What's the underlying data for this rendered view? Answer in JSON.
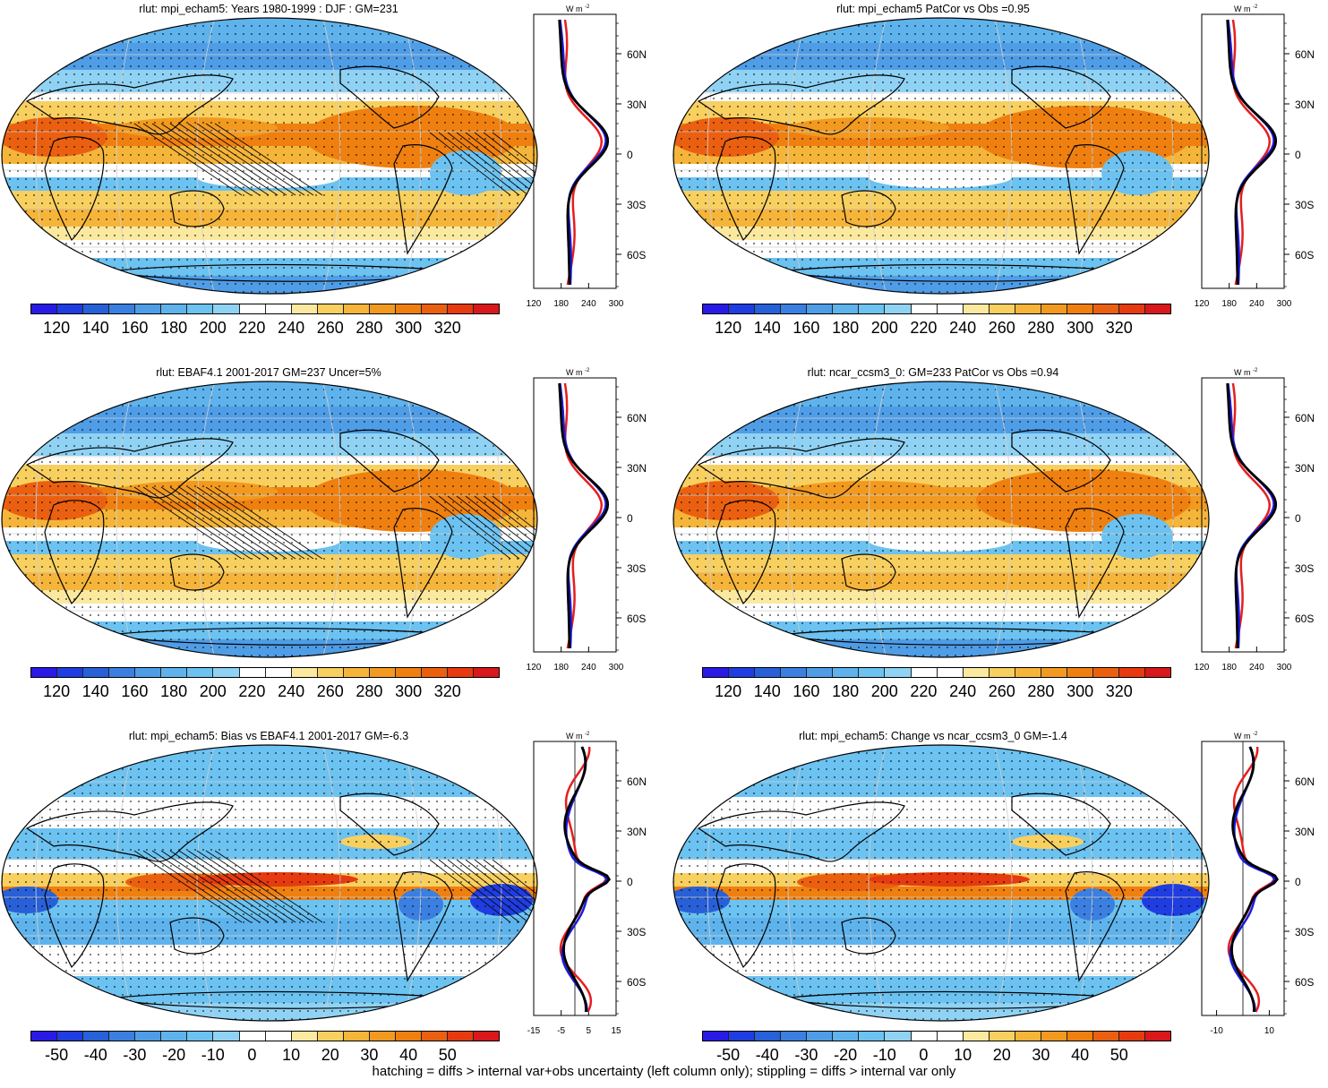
{
  "footer": "hatching = diffs > internal var+obs uncertainty (left column only); stippling = diffs > internal var only",
  "colors": {
    "scale": [
      "#2a1ae6",
      "#1f3de0",
      "#2860d8",
      "#3b7fe0",
      "#4f9de6",
      "#5fb3ec",
      "#6cc2f0",
      "#8fd2f4",
      "#ffffff",
      "#ffffff",
      "#fbe9a0",
      "#f8d060",
      "#f5b53a",
      "#f29a20",
      "#ef8010",
      "#eb6010",
      "#e63a10",
      "#d8181a"
    ],
    "obs": "#e61e1e",
    "model": "#1b1bdc",
    "other": "#000000"
  },
  "zonal_units": "W m",
  "zonal_units_sup": "-2",
  "lat_labels": [
    "60N",
    "30N",
    "0",
    "30S",
    "60S"
  ],
  "panels": [
    {
      "title": "rlut: mpi_echam5: Years 1980-1999 : DJF : GM=231",
      "cbar_labels": [
        "120",
        "140",
        "160",
        "180",
        "200",
        "220",
        "240",
        "260",
        "280",
        "300",
        "320"
      ],
      "zonal_ticks": [
        "120",
        "180",
        "240",
        "300"
      ],
      "type": "abs"
    },
    {
      "title": "rlut: mpi_echam5 PatCor vs Obs =0.95",
      "cbar_labels": [
        "120",
        "140",
        "160",
        "180",
        "200",
        "220",
        "240",
        "260",
        "280",
        "300",
        "320"
      ],
      "zonal_ticks": [
        "120",
        "180",
        "240",
        "300"
      ],
      "type": "abs"
    },
    {
      "title": "rlut: EBAF4.1 2001-2017 GM=237 Uncer=5%",
      "cbar_labels": [
        "120",
        "140",
        "160",
        "180",
        "200",
        "220",
        "240",
        "260",
        "280",
        "300",
        "320"
      ],
      "zonal_ticks": [
        "120",
        "180",
        "240",
        "300"
      ],
      "type": "abs"
    },
    {
      "title": "rlut: ncar_ccsm3_0: GM=233 PatCor vs Obs =0.94",
      "cbar_labels": [
        "120",
        "140",
        "160",
        "180",
        "200",
        "220",
        "240",
        "260",
        "280",
        "300",
        "320"
      ],
      "zonal_ticks": [
        "120",
        "180",
        "240",
        "300"
      ],
      "type": "abs"
    },
    {
      "title": "rlut: mpi_echam5: Bias vs EBAF4.1 2001-2017 GM=-6.3",
      "cbar_labels": [
        "-50",
        "-40",
        "-30",
        "-20",
        "-10",
        "0",
        "10",
        "20",
        "30",
        "40",
        "50"
      ],
      "zonal_ticks": [
        "-15",
        "-5",
        "5",
        "15"
      ],
      "type": "diff"
    },
    {
      "title": "rlut: mpi_echam5: Change vs ncar_ccsm3_0 GM=-1.4",
      "cbar_labels": [
        "-50",
        "-40",
        "-30",
        "-20",
        "-10",
        "0",
        "10",
        "20",
        "30",
        "40",
        "50"
      ],
      "zonal_ticks": [
        "-10",
        "10"
      ],
      "type": "diff"
    }
  ]
}
